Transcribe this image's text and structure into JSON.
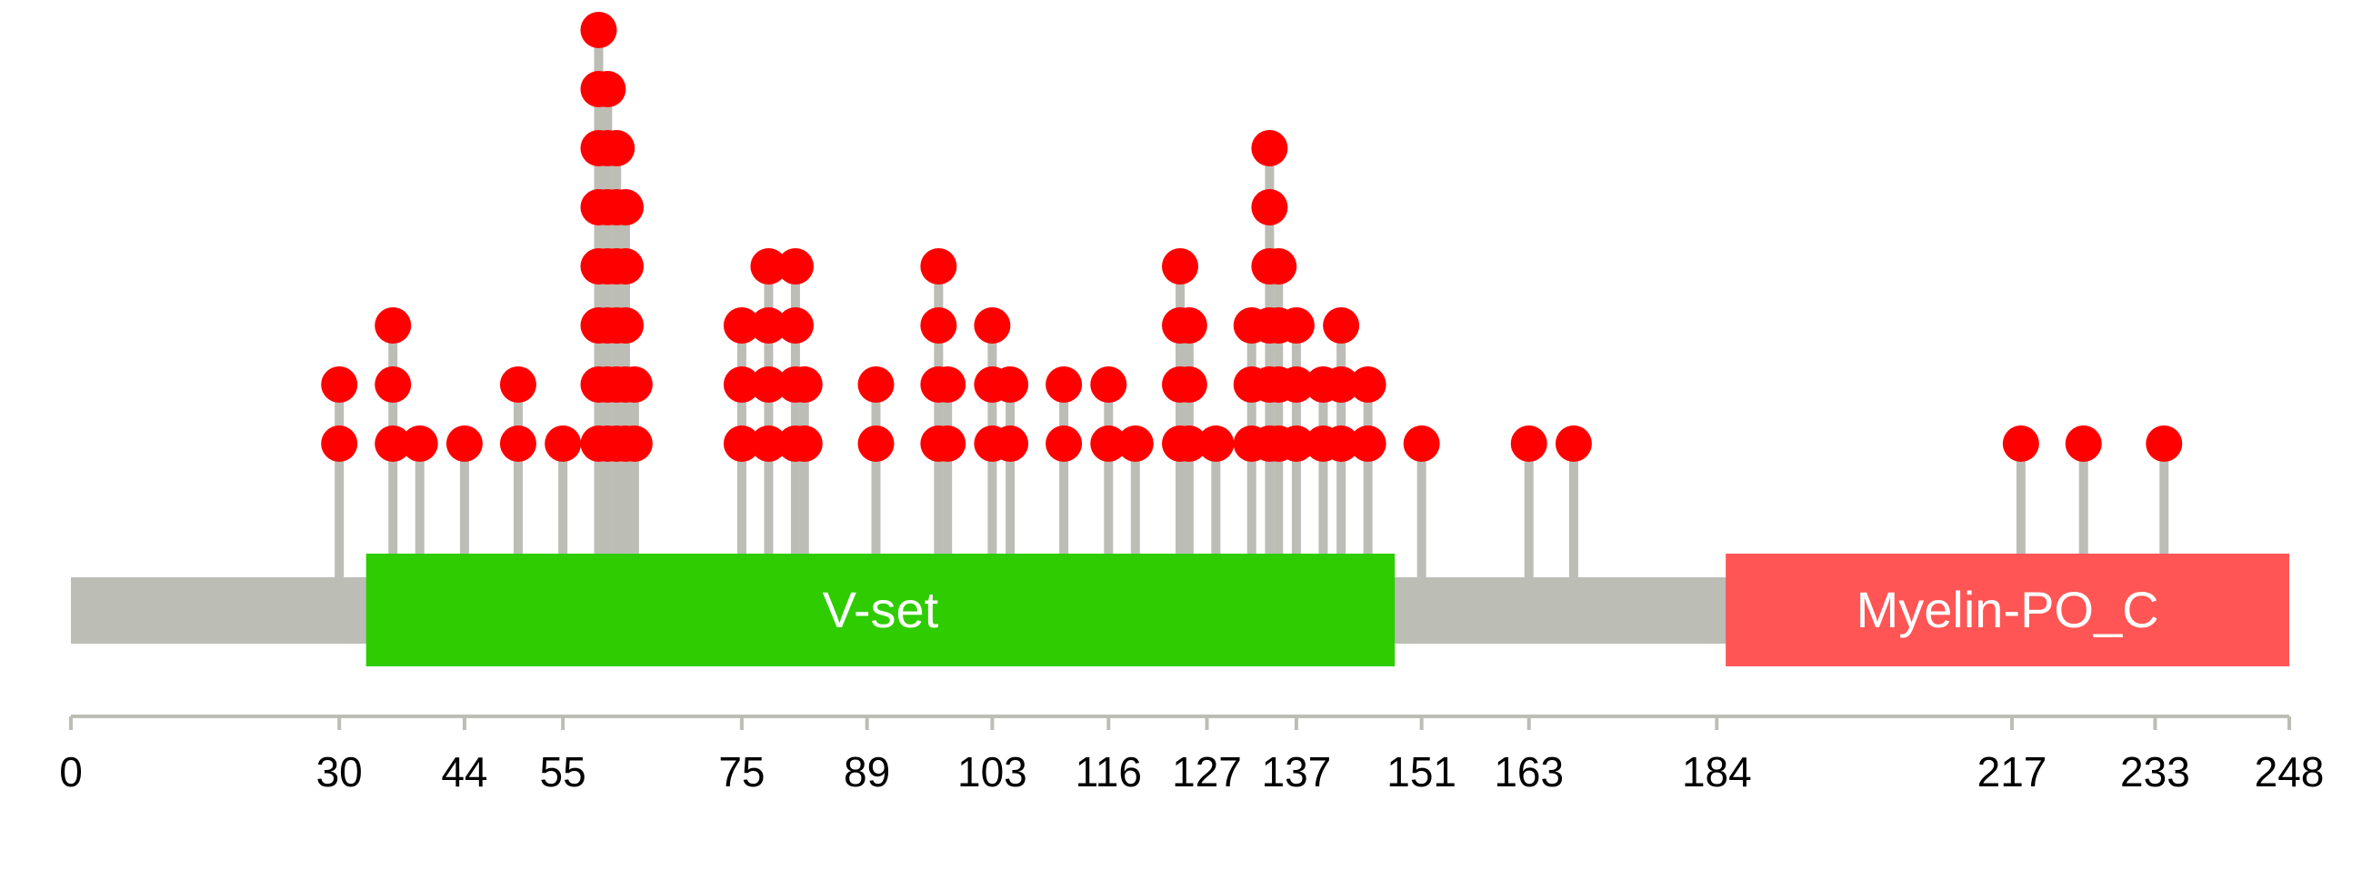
{
  "chart_data": {
    "type": "lollipop",
    "protein_length": 248,
    "axis_ticks": [
      0,
      30,
      44,
      55,
      75,
      89,
      103,
      116,
      127,
      137,
      151,
      163,
      184,
      217,
      233,
      248
    ],
    "domains": [
      {
        "name": "V-set",
        "start": 33,
        "end": 148,
        "color": "#2ecc00"
      },
      {
        "name": "Myelin-PO_C",
        "start": 185,
        "end": 250,
        "color": "#ff5555"
      }
    ],
    "mutations": [
      {
        "position": 30,
        "count": 2
      },
      {
        "position": 36,
        "count": 3
      },
      {
        "position": 39,
        "count": 1
      },
      {
        "position": 44,
        "count": 1
      },
      {
        "position": 50,
        "count": 2
      },
      {
        "position": 55,
        "count": 1
      },
      {
        "position": 59,
        "count": 8
      },
      {
        "position": 60,
        "count": 7
      },
      {
        "position": 61,
        "count": 6
      },
      {
        "position": 62,
        "count": 5
      },
      {
        "position": 63,
        "count": 2
      },
      {
        "position": 75,
        "count": 3
      },
      {
        "position": 78,
        "count": 4
      },
      {
        "position": 81,
        "count": 4
      },
      {
        "position": 82,
        "count": 2
      },
      {
        "position": 90,
        "count": 2
      },
      {
        "position": 97,
        "count": 4
      },
      {
        "position": 98,
        "count": 2
      },
      {
        "position": 103,
        "count": 3
      },
      {
        "position": 105,
        "count": 2
      },
      {
        "position": 111,
        "count": 2
      },
      {
        "position": 116,
        "count": 2
      },
      {
        "position": 119,
        "count": 1
      },
      {
        "position": 124,
        "count": 4
      },
      {
        "position": 125,
        "count": 3
      },
      {
        "position": 128,
        "count": 1
      },
      {
        "position": 132,
        "count": 3
      },
      {
        "position": 134,
        "count": 6
      },
      {
        "position": 135,
        "count": 4
      },
      {
        "position": 137,
        "count": 3
      },
      {
        "position": 140,
        "count": 2
      },
      {
        "position": 142,
        "count": 3
      },
      {
        "position": 145,
        "count": 2
      },
      {
        "position": 151,
        "count": 1
      },
      {
        "position": 163,
        "count": 1
      },
      {
        "position": 168,
        "count": 1
      },
      {
        "position": 218,
        "count": 1
      },
      {
        "position": 225,
        "count": 1
      },
      {
        "position": 234,
        "count": 1
      }
    ],
    "colors": {
      "backbone": "#bcbdb5",
      "stem": "#bcbdb5",
      "marker": "#ff0000",
      "axis": "#bcbdb5"
    }
  }
}
